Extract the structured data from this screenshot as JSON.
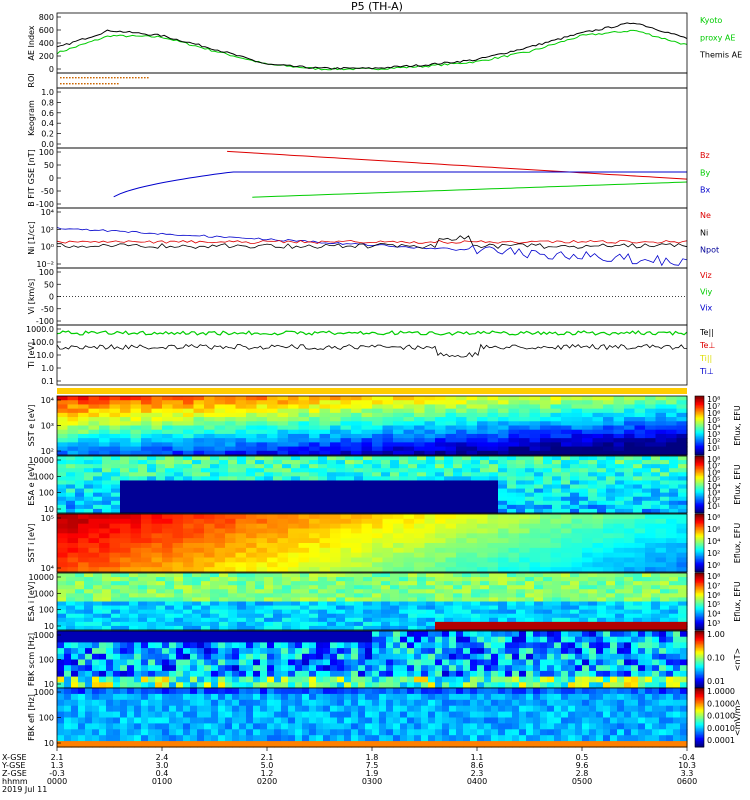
{
  "title": "P5 (TH-A)",
  "colors": {
    "kyoto_green": "#00cc00",
    "themis_black": "#000000",
    "bz_red": "#dd0000",
    "by_green": "#00cc00",
    "bx_blue": "#0000cc",
    "roi_orange": "#cc6600"
  },
  "panels": [
    {
      "id": "ae",
      "ylabel": "AE Index",
      "ticks": [
        "800",
        "600",
        "400",
        "200",
        "0"
      ],
      "legend": [
        {
          "text": "Kyoto",
          "color": "#00cc00"
        },
        {
          "text": "proxy AE",
          "color": "#00cc00"
        },
        {
          "text": "Themis AE",
          "color": "#000000"
        }
      ]
    },
    {
      "id": "roi",
      "ylabel": "ROI",
      "ticks": [],
      "legend": []
    },
    {
      "id": "keogram",
      "ylabel": "Keogram",
      "ticks": [
        "1.0",
        "0.8",
        "0.6",
        "0.4",
        "0.2",
        "0.0"
      ],
      "legend": []
    },
    {
      "id": "bfield",
      "ylabel": "B FIT GSE [nT]",
      "ticks": [
        "100",
        "50",
        "0",
        "-50",
        "-100"
      ],
      "legend": [
        {
          "text": "Bz",
          "color": "#dd0000"
        },
        {
          "text": "By",
          "color": "#00cc00"
        },
        {
          "text": "Bx",
          "color": "#0000cc"
        }
      ]
    },
    {
      "id": "density",
      "ylabel": "Ni [1/cc]",
      "ticks": [
        "10⁴",
        "10²",
        "10⁰",
        "10⁻²"
      ],
      "legend": [
        {
          "text": "Ne",
          "color": "#dd0000"
        },
        {
          "text": "Ni",
          "color": "#000000"
        },
        {
          "text": "Npot",
          "color": "#000099"
        }
      ]
    },
    {
      "id": "velocity",
      "ylabel": "Vi [km/s]",
      "ticks": [
        "100",
        "50",
        "0",
        "-50",
        "-100"
      ],
      "legend": [
        {
          "text": "Viz",
          "color": "#dd0000"
        },
        {
          "text": "Viy",
          "color": "#00cc00"
        },
        {
          "text": "Vix",
          "color": "#0000cc"
        }
      ]
    },
    {
      "id": "temp",
      "ylabel": "Ti [eV]",
      "ticks": [
        "1000.0",
        "100.0",
        "10.0",
        "1.0",
        "0.1"
      ],
      "legend": [
        {
          "text": "Te||",
          "color": "#000000"
        },
        {
          "text": "Te⊥",
          "color": "#dd0000"
        },
        {
          "text": "Ti||",
          "color": "#dddd00"
        },
        {
          "text": "Ti⊥",
          "color": "#0000cc"
        }
      ]
    },
    {
      "id": "sst_e",
      "ylabel": "SST e [eV]",
      "ticks": [
        "10⁴",
        "10³",
        "10²"
      ],
      "cbar": [
        "10⁸",
        "10⁷",
        "10⁶",
        "10⁵",
        "10⁴",
        "10³",
        "10²",
        "10¹"
      ],
      "cbar_label": "Eflux, EFU"
    },
    {
      "id": "esa_e",
      "ylabel": "ESA e [eV]",
      "ticks": [
        "10000",
        "1000",
        "100",
        "10"
      ],
      "cbar": [
        "10⁸",
        "10⁷",
        "10⁶",
        "10⁵",
        "10⁴",
        "10³",
        "10²",
        "10¹"
      ],
      "cbar_label": "Eflux, EFU"
    },
    {
      "id": "sst_i",
      "ylabel": "SST i [eV]",
      "ticks": [
        "10⁵",
        "10⁴"
      ],
      "cbar": [
        "10⁸",
        "10⁶",
        "10⁴",
        "10²",
        "10⁰"
      ],
      "cbar_label": "Eflux, EFU"
    },
    {
      "id": "esa_i",
      "ylabel": "ESA i [eV]",
      "ticks": [
        "10000",
        "1000",
        "100",
        "10"
      ],
      "cbar": [
        "10⁸",
        "10⁷",
        "10⁶",
        "10⁵",
        "10⁴",
        "10³"
      ],
      "cbar_label": "Eflux, EFU"
    },
    {
      "id": "fbk_scm",
      "ylabel": "FBK scm [Hz]",
      "ticks": [
        "1000",
        "100",
        "10"
      ],
      "cbar": [
        "1.00",
        "0.10",
        "0.01"
      ],
      "cbar_label": "<nT>"
    },
    {
      "id": "fbk_efi",
      "ylabel": "FBK efi [Hz]",
      "ticks": [
        "1000",
        "100",
        "10"
      ],
      "cbar": [
        "1.0000",
        "0.1000",
        "0.0100",
        "0.0010",
        "0.0001"
      ],
      "cbar_label": "<mV/m>"
    }
  ],
  "xaxis": {
    "row_labels": [
      "X-GSE",
      "Y-GSE",
      "Z-GSE",
      "hhmm",
      "2019 Jul 11"
    ],
    "columns": [
      {
        "x": "2.1",
        "y": "1.3",
        "z": "-0.3",
        "t": "0000"
      },
      {
        "x": "2.4",
        "y": "3.0",
        "z": "0.4",
        "t": "0100"
      },
      {
        "x": "2.1",
        "y": "5.0",
        "z": "1.2",
        "t": "0200"
      },
      {
        "x": "1.8",
        "y": "7.5",
        "z": "1.9",
        "t": "0300"
      },
      {
        "x": "1.1",
        "y": "8.6",
        "z": "2.3",
        "t": "0400"
      },
      {
        "x": "0.5",
        "y": "9.6",
        "z": "2.8",
        "t": "0500"
      },
      {
        "x": "-0.4",
        "y": "10.3",
        "z": "3.3",
        "t": "0600"
      }
    ]
  },
  "chart_data": {
    "type": "line",
    "title": "P5 (TH-A)",
    "x": [
      "0000",
      "0030",
      "0100",
      "0130",
      "0200",
      "0230",
      "0300",
      "0330",
      "0400",
      "0430",
      "0500",
      "0530",
      "0600"
    ],
    "series": [
      {
        "name": "Kyoto proxy AE",
        "values": [
          300,
          560,
          540,
          330,
          130,
          60,
          60,
          100,
          170,
          320,
          560,
          640,
          420
        ]
      },
      {
        "name": "Themis AE",
        "values": [
          380,
          640,
          560,
          360,
          130,
          70,
          70,
          120,
          200,
          390,
          600,
          760,
          520
        ]
      }
    ],
    "ylabel": "AE Index",
    "ylim": [
      0,
      900
    ]
  }
}
